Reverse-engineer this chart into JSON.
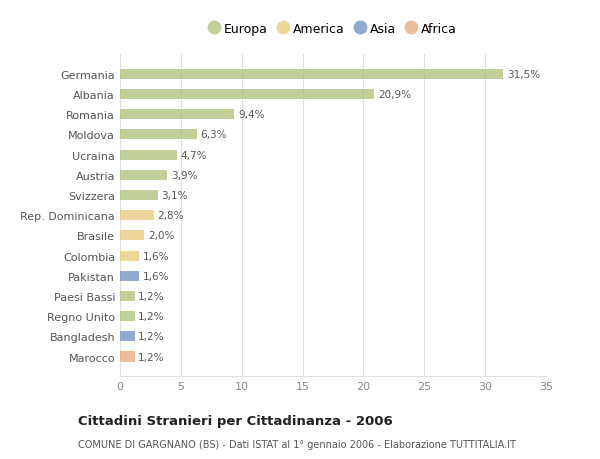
{
  "categories": [
    "Germania",
    "Albania",
    "Romania",
    "Moldova",
    "Ucraina",
    "Austria",
    "Svizzera",
    "Rep. Dominicana",
    "Brasile",
    "Colombia",
    "Pakistan",
    "Paesi Bassi",
    "Regno Unito",
    "Bangladesh",
    "Marocco"
  ],
  "values": [
    31.5,
    20.9,
    9.4,
    6.3,
    4.7,
    3.9,
    3.1,
    2.8,
    2.0,
    1.6,
    1.6,
    1.2,
    1.2,
    1.2,
    1.2
  ],
  "labels": [
    "31,5%",
    "20,9%",
    "9,4%",
    "6,3%",
    "4,7%",
    "3,9%",
    "3,1%",
    "2,8%",
    "2,0%",
    "1,6%",
    "1,6%",
    "1,2%",
    "1,2%",
    "1,2%",
    "1,2%"
  ],
  "continent": [
    "Europa",
    "Europa",
    "Europa",
    "Europa",
    "Europa",
    "Europa",
    "Europa",
    "America",
    "America",
    "America",
    "Asia",
    "Europa",
    "Europa",
    "Asia",
    "Africa"
  ],
  "colors": {
    "Europa": "#adc178",
    "America": "#e8c97a",
    "Asia": "#6b8fbf",
    "Africa": "#e8a87a"
  },
  "xlim": [
    0,
    35
  ],
  "xticks": [
    0,
    5,
    10,
    15,
    20,
    25,
    30,
    35
  ],
  "title": "Cittadini Stranieri per Cittadinanza - 2006",
  "subtitle": "COMUNE DI GARGNANO (BS) - Dati ISTAT al 1° gennaio 2006 - Elaborazione TUTTITALIA.IT",
  "background_color": "#ffffff",
  "grid_color": "#e0e0e0",
  "bar_alpha": 0.75,
  "legend_entries": [
    "Europa",
    "America",
    "Asia",
    "Africa"
  ]
}
